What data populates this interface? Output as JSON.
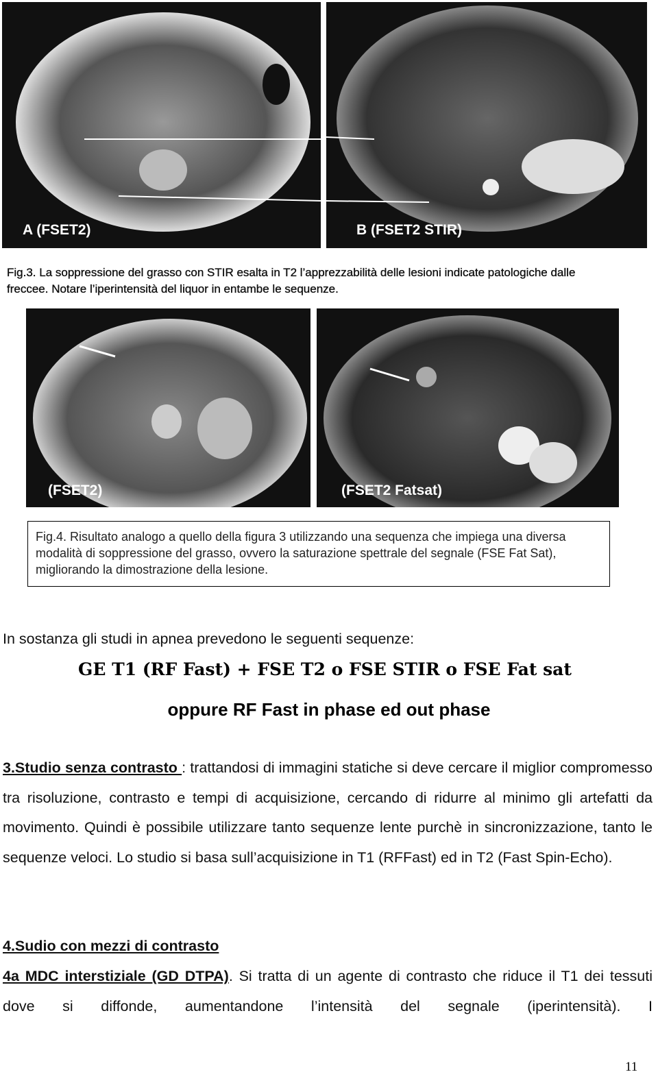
{
  "figure3": {
    "panels": [
      {
        "label": "A (FSET2)"
      },
      {
        "label": "B (FSET2 STIR)"
      }
    ],
    "caption": "Fig.3. La soppressione del grasso con STIR esalta in T2 l’apprezzabilità delle lesioni indicate patologiche dalle freccee. Notare l’iperintensità del liquor in entambe le sequenze."
  },
  "figure4": {
    "panels": [
      {
        "label": "(FSET2)"
      },
      {
        "label": "(FSET2 Fatsat)"
      }
    ],
    "caption": "Fig.4. Risultato analogo a quello della figura 3 utilizzando una sequenza che impiega una diversa modalità di soppressione del grasso, ovvero la saturazione spettrale del segnale  (FSE Fat Sat), migliorando la dimostrazione della lesione."
  },
  "intro": "In sostanza gli studi in apnea prevedono le seguenti sequenze:",
  "sequences": [
    "GE T1 (RF Fast) + FSE T2 o FSE STIR o FSE Fat sat",
    "oppure RF Fast  in phase ed out phase"
  ],
  "section3": {
    "heading": "3.Studio senza contrasto ",
    "text": ": trattandosi di immagini statiche si deve cercare il miglior compromesso tra risoluzione, contrasto e tempi di acquisizione, cercando di ridurre al minimo gli artefatti da movimento. Quindi è possibile utilizzare tanto sequenze lente purchè in sincronizzazione, tanto le sequenze veloci. Lo studio si basa sull’acquisizione in T1 (RFFast)  ed in T2 (Fast Spin-Echo)."
  },
  "section4": {
    "heading": "4.Sudio con mezzi di contrasto",
    "subheading": "4a MDC interstiziale (GD DTPA)",
    "text": ". Si tratta di un agente di contrasto che riduce il T1 dei tessuti dove si diffonde, aumentandone l’intensità del segnale (iperintensità). I"
  },
  "page_number": "11"
}
